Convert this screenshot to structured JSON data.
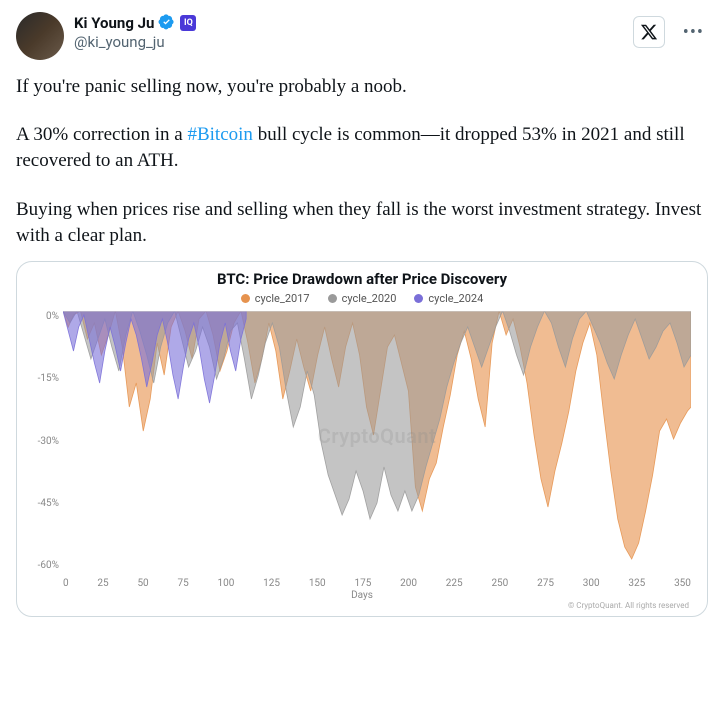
{
  "author": {
    "display_name": "Ki Young Ju",
    "handle": "@ki_young_ju",
    "verified": true,
    "badge_text": "IQ"
  },
  "body": {
    "p1": "If you're panic selling now, you're probably a noob.",
    "p2_pre": "A 30% correction in a ",
    "p2_tag": "#Bitcoin",
    "p2_post": " bull cycle is common—it dropped 53% in 2021 and still recovered to an ATH.",
    "p3": "Buying when prices rise and selling when they fall is the worst investment strategy. Invest with a clear plan."
  },
  "chart": {
    "title": "BTC: Price Drawdown after Price Discovery",
    "legend": [
      {
        "label": "cycle_2017",
        "color": "#e6934f"
      },
      {
        "label": "cycle_2020",
        "color": "#9a9a9a"
      },
      {
        "label": "cycle_2024",
        "color": "#7a6fd8"
      }
    ],
    "watermark": "CryptoQuant",
    "attribution": "© CryptoQuant. All rights reserved",
    "y_axis": {
      "ticks": [
        "0%",
        "-15%",
        "-30%",
        "-45%",
        "-60%"
      ],
      "min": -65,
      "max": 0
    },
    "x_axis": {
      "ticks": [
        "0",
        "25",
        "50",
        "75",
        "100",
        "125",
        "150",
        "175",
        "200",
        "225",
        "250",
        "275",
        "300",
        "325",
        "350"
      ],
      "title": "Days",
      "min": 0,
      "max": 360
    },
    "series": {
      "cycle_2017": {
        "color": "#e6934f",
        "opacity": 0.62,
        "points": [
          [
            0,
            0
          ],
          [
            3,
            -4
          ],
          [
            6,
            -1
          ],
          [
            10,
            0
          ],
          [
            14,
            -7
          ],
          [
            18,
            -3
          ],
          [
            22,
            -11
          ],
          [
            26,
            -6
          ],
          [
            30,
            0
          ],
          [
            34,
            -9
          ],
          [
            38,
            -24
          ],
          [
            42,
            -18
          ],
          [
            46,
            -30
          ],
          [
            50,
            -22
          ],
          [
            54,
            -8
          ],
          [
            58,
            -16
          ],
          [
            62,
            -4
          ],
          [
            66,
            0
          ],
          [
            70,
            -5
          ],
          [
            74,
            -12
          ],
          [
            78,
            -2
          ],
          [
            82,
            0
          ],
          [
            86,
            -6
          ],
          [
            90,
            -15
          ],
          [
            94,
            -10
          ],
          [
            98,
            -3
          ],
          [
            102,
            0
          ],
          [
            106,
            -8
          ],
          [
            110,
            -18
          ],
          [
            114,
            -12
          ],
          [
            118,
            -3
          ],
          [
            122,
            -10
          ],
          [
            126,
            -22
          ],
          [
            130,
            -15
          ],
          [
            134,
            -7
          ],
          [
            138,
            -14
          ],
          [
            142,
            -20
          ],
          [
            146,
            -11
          ],
          [
            150,
            -4
          ],
          [
            154,
            -12
          ],
          [
            158,
            -19
          ],
          [
            162,
            -9
          ],
          [
            166,
            -3
          ],
          [
            170,
            -11
          ],
          [
            174,
            -24
          ],
          [
            178,
            -31
          ],
          [
            182,
            -20
          ],
          [
            186,
            -9
          ],
          [
            190,
            -6
          ],
          [
            194,
            -13
          ],
          [
            198,
            -20
          ],
          [
            202,
            -44
          ],
          [
            206,
            -50
          ],
          [
            210,
            -42
          ],
          [
            214,
            -38
          ],
          [
            218,
            -29
          ],
          [
            222,
            -21
          ],
          [
            226,
            -11
          ],
          [
            230,
            -5
          ],
          [
            234,
            -12
          ],
          [
            238,
            -22
          ],
          [
            242,
            -29
          ],
          [
            246,
            -8
          ],
          [
            250,
            0
          ],
          [
            254,
            -6
          ],
          [
            258,
            -2
          ],
          [
            262,
            -9
          ],
          [
            266,
            -18
          ],
          [
            270,
            -31
          ],
          [
            274,
            -42
          ],
          [
            278,
            -49
          ],
          [
            282,
            -40
          ],
          [
            286,
            -33
          ],
          [
            290,
            -25
          ],
          [
            294,
            -15
          ],
          [
            298,
            -8
          ],
          [
            302,
            -3
          ],
          [
            306,
            -11
          ],
          [
            310,
            -26
          ],
          [
            314,
            -40
          ],
          [
            318,
            -52
          ],
          [
            322,
            -59
          ],
          [
            326,
            -62
          ],
          [
            330,
            -58
          ],
          [
            334,
            -50
          ],
          [
            338,
            -41
          ],
          [
            342,
            -30
          ],
          [
            346,
            -27
          ],
          [
            350,
            -32
          ],
          [
            354,
            -28
          ],
          [
            358,
            -25
          ],
          [
            360,
            -24
          ]
        ]
      },
      "cycle_2020": {
        "color": "#9a9a9a",
        "opacity": 0.58,
        "points": [
          [
            0,
            0
          ],
          [
            4,
            -3
          ],
          [
            8,
            0
          ],
          [
            12,
            -6
          ],
          [
            16,
            -12
          ],
          [
            20,
            -7
          ],
          [
            24,
            -2
          ],
          [
            28,
            -9
          ],
          [
            32,
            -15
          ],
          [
            36,
            -6
          ],
          [
            40,
            0
          ],
          [
            44,
            -5
          ],
          [
            48,
            -11
          ],
          [
            52,
            -18
          ],
          [
            56,
            -9
          ],
          [
            60,
            -3
          ],
          [
            64,
            0
          ],
          [
            68,
            -7
          ],
          [
            72,
            -14
          ],
          [
            76,
            -10
          ],
          [
            80,
            -4
          ],
          [
            84,
            -9
          ],
          [
            88,
            -17
          ],
          [
            92,
            -12
          ],
          [
            96,
            -5
          ],
          [
            100,
            -3
          ],
          [
            104,
            -12
          ],
          [
            108,
            -22
          ],
          [
            112,
            -16
          ],
          [
            116,
            -8
          ],
          [
            120,
            -3
          ],
          [
            124,
            -9
          ],
          [
            128,
            -20
          ],
          [
            132,
            -29
          ],
          [
            136,
            -24
          ],
          [
            140,
            -15
          ],
          [
            144,
            -21
          ],
          [
            148,
            -33
          ],
          [
            152,
            -41
          ],
          [
            156,
            -46
          ],
          [
            160,
            -51
          ],
          [
            164,
            -47
          ],
          [
            168,
            -40
          ],
          [
            172,
            -45
          ],
          [
            176,
            -52
          ],
          [
            180,
            -48
          ],
          [
            184,
            -39
          ],
          [
            188,
            -46
          ],
          [
            192,
            -50
          ],
          [
            196,
            -45
          ],
          [
            200,
            -50
          ],
          [
            204,
            -46
          ],
          [
            208,
            -39
          ],
          [
            212,
            -33
          ],
          [
            216,
            -27
          ],
          [
            220,
            -19
          ],
          [
            224,
            -13
          ],
          [
            228,
            -8
          ],
          [
            232,
            -4
          ],
          [
            236,
            -9
          ],
          [
            240,
            -14
          ],
          [
            244,
            -9
          ],
          [
            248,
            -4
          ],
          [
            252,
            0
          ],
          [
            256,
            -5
          ],
          [
            260,
            -11
          ],
          [
            264,
            -16
          ],
          [
            268,
            -9
          ],
          [
            272,
            -4
          ],
          [
            276,
            0
          ],
          [
            280,
            -3
          ],
          [
            284,
            -9
          ],
          [
            288,
            -14
          ],
          [
            292,
            -7
          ],
          [
            296,
            -2
          ],
          [
            300,
            0
          ],
          [
            304,
            -4
          ],
          [
            308,
            -8
          ],
          [
            312,
            -13
          ],
          [
            316,
            -17
          ],
          [
            320,
            -11
          ],
          [
            324,
            -6
          ],
          [
            328,
            -2
          ],
          [
            332,
            -7
          ],
          [
            336,
            -12
          ],
          [
            340,
            -9
          ],
          [
            344,
            -5
          ],
          [
            348,
            -3
          ],
          [
            352,
            -8
          ],
          [
            356,
            -14
          ],
          [
            360,
            -11
          ]
        ]
      },
      "cycle_2024": {
        "color": "#7a6fd8",
        "opacity": 0.6,
        "points": [
          [
            0,
            0
          ],
          [
            3,
            -5
          ],
          [
            6,
            -10
          ],
          [
            9,
            -4
          ],
          [
            12,
            -1
          ],
          [
            15,
            -7
          ],
          [
            18,
            -13
          ],
          [
            21,
            -18
          ],
          [
            24,
            -10
          ],
          [
            27,
            -4
          ],
          [
            30,
            -9
          ],
          [
            33,
            -15
          ],
          [
            36,
            -8
          ],
          [
            39,
            -2
          ],
          [
            42,
            -6
          ],
          [
            45,
            -12
          ],
          [
            48,
            -19
          ],
          [
            51,
            -13
          ],
          [
            54,
            -6
          ],
          [
            57,
            -2
          ],
          [
            60,
            -8
          ],
          [
            63,
            -16
          ],
          [
            66,
            -22
          ],
          [
            69,
            -14
          ],
          [
            72,
            -7
          ],
          [
            75,
            -3
          ],
          [
            78,
            -9
          ],
          [
            81,
            -17
          ],
          [
            84,
            -23
          ],
          [
            87,
            -16
          ],
          [
            90,
            -8
          ],
          [
            93,
            -3
          ],
          [
            96,
            -10
          ],
          [
            99,
            -15
          ],
          [
            102,
            -7
          ],
          [
            105,
            -2
          ]
        ]
      }
    }
  },
  "colors": {
    "verified_blue": "#1d9bf0",
    "text_muted": "#536471"
  }
}
